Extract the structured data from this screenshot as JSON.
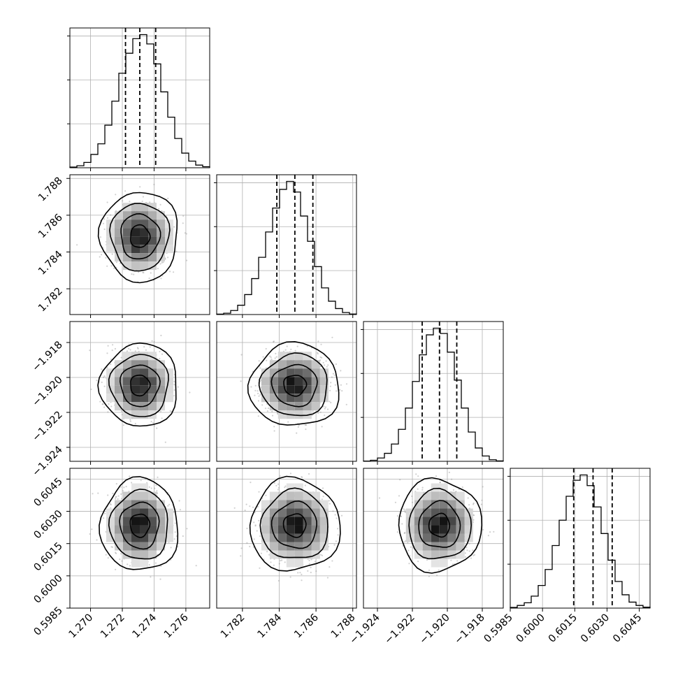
{
  "chart_data": {
    "type": "corner",
    "grid": true,
    "parameters": [
      {
        "index": 0,
        "mean": 1.2731,
        "std": 0.00098,
        "quantiles": [
          1.2722,
          1.2731,
          1.2741
        ],
        "range": [
          1.2687,
          1.2775
        ],
        "ticks": [
          1.27,
          1.272,
          1.274,
          1.276
        ],
        "tick_labels": [
          "1.270",
          "1.272",
          "1.274",
          "1.276"
        ],
        "hist": [
          0.005,
          0.015,
          0.04,
          0.1,
          0.18,
          0.32,
          0.5,
          0.71,
          0.86,
          0.97,
          1.0,
          0.93,
          0.78,
          0.57,
          0.38,
          0.22,
          0.11,
          0.05,
          0.02,
          0.008
        ]
      },
      {
        "index": 1,
        "mean": 1.78485,
        "std": 0.00098,
        "quantiles": [
          1.78387,
          1.78485,
          1.78583
        ],
        "range": [
          1.7806,
          1.7882
        ],
        "ticks": [
          1.782,
          1.784,
          1.786,
          1.788
        ],
        "tick_labels": [
          "1.782",
          "1.784",
          "1.786",
          "1.788"
        ],
        "hist": [
          0.003,
          0.01,
          0.03,
          0.07,
          0.15,
          0.27,
          0.43,
          0.62,
          0.8,
          0.94,
          1.0,
          0.92,
          0.74,
          0.55,
          0.36,
          0.2,
          0.1,
          0.045,
          0.015,
          0.004
        ]
      },
      {
        "index": 2,
        "mean": -1.92045,
        "std": 0.00095,
        "quantiles": [
          -1.92144,
          -1.92045,
          -1.91946
        ],
        "range": [
          -1.9248,
          -1.9168
        ],
        "ticks": [
          -1.924,
          -1.922,
          -1.92,
          -1.918
        ],
        "tick_labels": [
          "−1.924",
          "−1.922",
          "−1.920",
          "−1.918"
        ],
        "hist": [
          0.002,
          0.008,
          0.025,
          0.06,
          0.13,
          0.24,
          0.4,
          0.6,
          0.8,
          0.95,
          1.0,
          0.96,
          0.82,
          0.61,
          0.4,
          0.22,
          0.1,
          0.04,
          0.012,
          0.003
        ]
      },
      {
        "index": 3,
        "mean": 0.60235,
        "std": 0.00086,
        "quantiles": [
          0.60145,
          0.60235,
          0.60324
        ],
        "range": [
          0.5985,
          0.605
        ],
        "ticks": [
          0.5985,
          0.6,
          0.6015,
          0.603,
          0.6045
        ],
        "tick_labels": [
          "0.5985",
          "0.6000",
          "0.6015",
          "0.6030",
          "0.6045"
        ],
        "hist": [
          0.005,
          0.02,
          0.04,
          0.09,
          0.17,
          0.29,
          0.47,
          0.66,
          0.84,
          0.96,
          1.0,
          0.92,
          0.76,
          0.56,
          0.36,
          0.2,
          0.1,
          0.045,
          0.02,
          0.007
        ]
      }
    ],
    "contour_levels_sigma": [
      0.5,
      1.0,
      1.5,
      2.0
    ]
  }
}
